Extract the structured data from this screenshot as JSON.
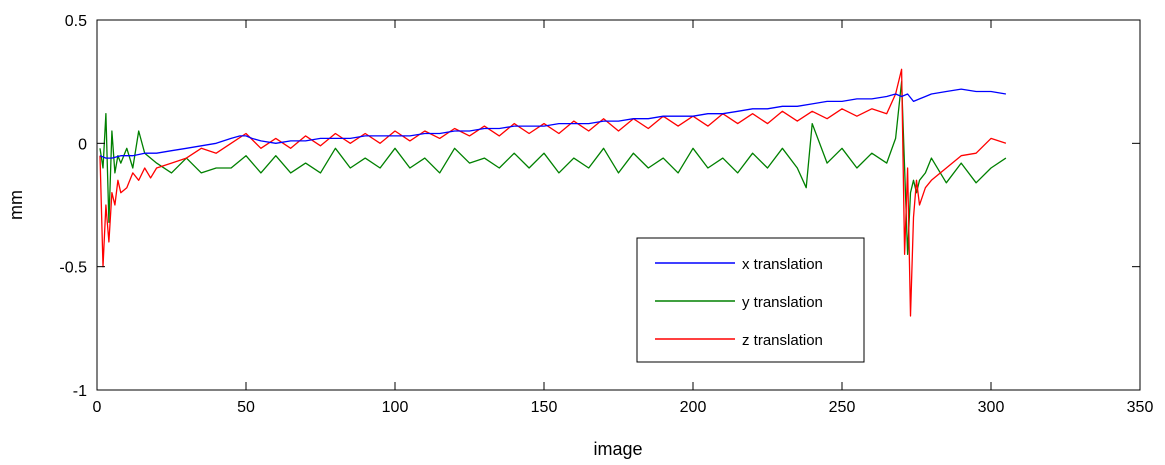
{
  "chart_data": {
    "type": "line",
    "xlabel": "image",
    "ylabel": "mm",
    "xlim": [
      0,
      350
    ],
    "ylim": [
      -1,
      0.5
    ],
    "xticks": [
      0,
      50,
      100,
      150,
      200,
      250,
      300,
      350
    ],
    "xtick_labels": [
      "0",
      "50",
      "100",
      "150",
      "200",
      "250",
      "300",
      "350"
    ],
    "yticks": [
      0.5,
      0,
      -0.5,
      -1
    ],
    "ytick_labels": [
      "0.5",
      "0",
      "-0.5",
      "-1"
    ],
    "grid": false,
    "legend_position": "lower-right",
    "series": [
      {
        "name": "x translation",
        "color": "#0000ff",
        "x": [
          1,
          3,
          5,
          8,
          12,
          16,
          20,
          25,
          30,
          35,
          40,
          45,
          48,
          50,
          52,
          55,
          60,
          65,
          70,
          75,
          80,
          85,
          90,
          95,
          100,
          105,
          110,
          115,
          120,
          125,
          130,
          135,
          140,
          145,
          150,
          155,
          160,
          165,
          170,
          175,
          180,
          185,
          190,
          195,
          200,
          205,
          210,
          215,
          220,
          225,
          230,
          235,
          240,
          245,
          250,
          255,
          260,
          265,
          268,
          270,
          272,
          274,
          276,
          278,
          280,
          285,
          290,
          295,
          300,
          305
        ],
        "y": [
          -0.05,
          -0.06,
          -0.06,
          -0.05,
          -0.05,
          -0.04,
          -0.04,
          -0.03,
          -0.02,
          -0.01,
          0.0,
          0.02,
          0.03,
          0.03,
          0.02,
          0.01,
          0.0,
          0.01,
          0.01,
          0.02,
          0.02,
          0.02,
          0.03,
          0.03,
          0.03,
          0.03,
          0.04,
          0.04,
          0.05,
          0.05,
          0.06,
          0.06,
          0.07,
          0.07,
          0.07,
          0.08,
          0.08,
          0.08,
          0.09,
          0.09,
          0.1,
          0.1,
          0.11,
          0.11,
          0.11,
          0.12,
          0.12,
          0.13,
          0.14,
          0.14,
          0.15,
          0.15,
          0.16,
          0.17,
          0.17,
          0.18,
          0.18,
          0.19,
          0.2,
          0.19,
          0.2,
          0.17,
          0.18,
          0.19,
          0.2,
          0.21,
          0.22,
          0.21,
          0.21,
          0.2
        ]
      },
      {
        "name": "y translation",
        "color": "#008000",
        "x": [
          1,
          2,
          3,
          4,
          5,
          6,
          7,
          8,
          10,
          12,
          14,
          16,
          18,
          20,
          25,
          30,
          35,
          40,
          45,
          50,
          55,
          60,
          65,
          70,
          75,
          80,
          85,
          90,
          95,
          100,
          105,
          110,
          115,
          120,
          125,
          130,
          135,
          140,
          145,
          150,
          155,
          160,
          165,
          170,
          175,
          180,
          185,
          190,
          195,
          200,
          205,
          210,
          215,
          220,
          225,
          230,
          235,
          238,
          240,
          245,
          250,
          255,
          260,
          265,
          268,
          270,
          271,
          272,
          273,
          274,
          275,
          276,
          278,
          280,
          285,
          290,
          295,
          300,
          305
        ],
        "y": [
          -0.02,
          -0.1,
          0.12,
          -0.32,
          0.05,
          -0.12,
          -0.05,
          -0.08,
          -0.02,
          -0.1,
          0.05,
          -0.04,
          -0.06,
          -0.08,
          -0.12,
          -0.06,
          -0.12,
          -0.1,
          -0.1,
          -0.05,
          -0.12,
          -0.05,
          -0.12,
          -0.08,
          -0.12,
          -0.02,
          -0.1,
          -0.06,
          -0.1,
          -0.02,
          -0.1,
          -0.06,
          -0.12,
          -0.02,
          -0.08,
          -0.06,
          -0.1,
          -0.04,
          -0.1,
          -0.04,
          -0.12,
          -0.06,
          -0.1,
          -0.02,
          -0.12,
          -0.04,
          -0.1,
          -0.06,
          -0.12,
          -0.02,
          -0.1,
          -0.06,
          -0.12,
          -0.04,
          -0.1,
          -0.02,
          -0.1,
          -0.18,
          0.08,
          -0.08,
          -0.02,
          -0.1,
          -0.04,
          -0.08,
          0.02,
          0.25,
          -0.1,
          -0.45,
          -0.2,
          -0.15,
          -0.2,
          -0.15,
          -0.12,
          -0.06,
          -0.16,
          -0.08,
          -0.16,
          -0.1,
          -0.06
        ]
      },
      {
        "name": "z translation",
        "color": "#ff0000",
        "x": [
          1,
          2,
          3,
          4,
          5,
          6,
          7,
          8,
          10,
          12,
          14,
          16,
          18,
          20,
          25,
          30,
          35,
          40,
          45,
          50,
          55,
          60,
          65,
          70,
          75,
          80,
          85,
          90,
          95,
          100,
          105,
          110,
          115,
          120,
          125,
          130,
          135,
          140,
          145,
          150,
          155,
          160,
          165,
          170,
          175,
          180,
          185,
          190,
          195,
          200,
          205,
          210,
          215,
          220,
          225,
          230,
          235,
          240,
          245,
          250,
          255,
          260,
          265,
          268,
          270,
          271,
          272,
          273,
          274,
          275,
          276,
          278,
          280,
          285,
          290,
          295,
          300,
          305
        ],
        "y": [
          -0.05,
          -0.5,
          -0.25,
          -0.4,
          -0.2,
          -0.25,
          -0.15,
          -0.2,
          -0.18,
          -0.12,
          -0.15,
          -0.1,
          -0.14,
          -0.1,
          -0.08,
          -0.06,
          -0.02,
          -0.04,
          0.0,
          0.04,
          -0.02,
          0.02,
          -0.02,
          0.03,
          -0.01,
          0.04,
          0.0,
          0.04,
          0.0,
          0.05,
          0.01,
          0.05,
          0.02,
          0.06,
          0.03,
          0.07,
          0.03,
          0.08,
          0.04,
          0.08,
          0.04,
          0.09,
          0.05,
          0.1,
          0.05,
          0.1,
          0.06,
          0.11,
          0.07,
          0.11,
          0.07,
          0.12,
          0.08,
          0.12,
          0.08,
          0.13,
          0.09,
          0.13,
          0.1,
          0.14,
          0.11,
          0.14,
          0.12,
          0.2,
          0.3,
          -0.45,
          -0.1,
          -0.7,
          -0.3,
          -0.15,
          -0.25,
          -0.18,
          -0.15,
          -0.1,
          -0.05,
          -0.04,
          0.02,
          0.0
        ]
      }
    ]
  }
}
